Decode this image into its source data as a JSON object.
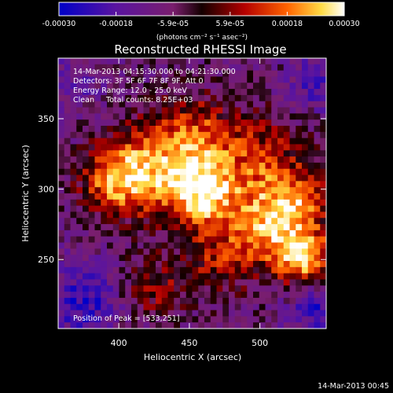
{
  "chart_data": {
    "type": "heatmap",
    "title": "Reconstructed RHESSI Image",
    "xlabel": "Heliocentric X (arcsec)",
    "ylabel": "Heliocentric Y (arcsec)",
    "xlim": [
      357,
      547
    ],
    "ylim": [
      201,
      393
    ],
    "x_ticks": [
      400,
      450,
      500
    ],
    "y_ticks": [
      250,
      300,
      350
    ],
    "x_tick_labels": [
      "400",
      "450",
      "500"
    ],
    "y_tick_labels": [
      "250",
      "300",
      "350"
    ],
    "annotations": [
      "14-Mar-2013 04:15:30.000 to 04:21:30.000",
      "Detectors: 3F 5F 6F 7F 8F 9F, Att 0",
      "Energy Range: 12.0 - 25.0 keV",
      "Clean     Total counts: 8.25E+03"
    ],
    "peak_label": "Position of Peak = [533,251]",
    "peak_position": [
      533,
      251
    ],
    "colorbar": {
      "range": [
        -0.0003,
        0.0003
      ],
      "tick_labels": [
        "-0.00030",
        "-0.00018",
        "-5.9e-05",
        "5.9e-05",
        "0.00018",
        "0.00030"
      ],
      "units_label": "(photons cm⁻² s⁻¹ asec⁻²)",
      "colors": [
        "#0000c8",
        "#5a14a0",
        "#7a1e6e",
        "#140000",
        "#b40000",
        "#ff6400",
        "#ffdc46",
        "#ffffff"
      ]
    }
  },
  "footer_date": "14-Mar-2013 00:45"
}
